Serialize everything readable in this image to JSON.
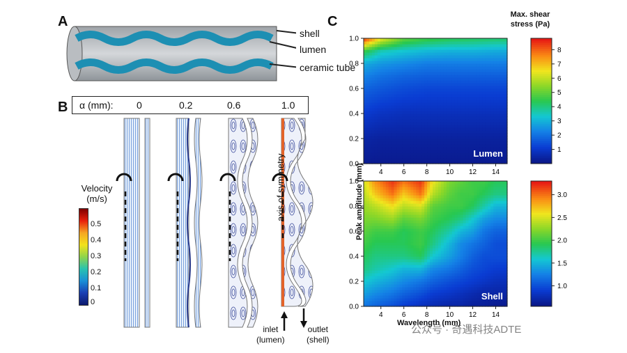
{
  "panels": {
    "a": "A",
    "b": "B",
    "c": "C"
  },
  "panel_a": {
    "labels": [
      "shell",
      "lumen",
      "ceramic tube"
    ]
  },
  "panel_b": {
    "alpha_header": "α (mm):",
    "alpha_values": [
      "0",
      "0.2",
      "0.6",
      "1.0"
    ],
    "velocity_title_line1": "Velocity",
    "velocity_title_line2": "(m/s)",
    "velocity_ticks": [
      "0.5",
      "0.4",
      "0.3",
      "0.2",
      "0.1",
      "0"
    ],
    "axis_of_symmetry": "axis of symmetry",
    "inlet_line1": "inlet",
    "inlet_line2": "(lumen)",
    "outlet_line1": "outlet",
    "outlet_line2": "(shell)"
  },
  "chart_data": [
    {
      "type": "heatmap",
      "title": "Lumen",
      "xlabel": "Wavelength (mm)",
      "ylabel": "Peak amplitude (mm)",
      "xlim": [
        2.5,
        15
      ],
      "ylim": [
        0,
        1
      ],
      "x_ticks": [
        "4",
        "6",
        "8",
        "10",
        "12",
        "14"
      ],
      "y_ticks": [
        "0.0",
        "0.2",
        "0.4",
        "0.6",
        "0.8",
        "1.0"
      ],
      "colorbar_title_line1": "Max. shear",
      "colorbar_title_line2": "stress (Pa)",
      "colorbar_ticks": [
        "8",
        "7",
        "6",
        "5",
        "4",
        "3",
        "2",
        "1"
      ],
      "colorbar_range": [
        0,
        8.8
      ],
      "x": [
        2.5,
        4,
        6,
        8,
        10,
        12,
        14,
        15
      ],
      "y": [
        0,
        0.2,
        0.4,
        0.6,
        0.7,
        0.8,
        0.9,
        1.0
      ],
      "z": [
        [
          0.2,
          0.2,
          0.2,
          0.2,
          0.2,
          0.2,
          0.2,
          0.2
        ],
        [
          0.5,
          0.4,
          0.4,
          0.4,
          0.4,
          0.4,
          0.4,
          0.4
        ],
        [
          1.1,
          0.9,
          0.8,
          0.8,
          0.8,
          0.8,
          0.8,
          0.8
        ],
        [
          1.8,
          1.6,
          1.4,
          1.3,
          1.3,
          1.3,
          1.3,
          1.3
        ],
        [
          2.3,
          2.0,
          1.8,
          1.7,
          1.7,
          1.7,
          1.7,
          1.7
        ],
        [
          2.9,
          2.6,
          2.4,
          2.2,
          2.2,
          2.2,
          2.2,
          2.2
        ],
        [
          4.6,
          3.6,
          3.3,
          3.1,
          3.0,
          3.0,
          2.9,
          2.9
        ],
        [
          8.6,
          6.5,
          5.0,
          4.6,
          4.4,
          4.3,
          4.2,
          4.2
        ]
      ]
    },
    {
      "type": "heatmap",
      "title": "Shell",
      "xlabel": "Wavelength (mm)",
      "ylabel": "Peak amplitude (mm)",
      "xlim": [
        2.5,
        15
      ],
      "ylim": [
        0,
        1
      ],
      "x_ticks": [
        "4",
        "6",
        "8",
        "10",
        "12",
        "14"
      ],
      "y_ticks": [
        "0.0",
        "0.2",
        "0.4",
        "0.6",
        "0.8",
        "1.0"
      ],
      "colorbar_ticks": [
        "3.0",
        "2.5",
        "2.0",
        "1.5",
        "1.0"
      ],
      "colorbar_range": [
        0.55,
        3.3
      ],
      "x": [
        2.5,
        3.5,
        5,
        6,
        7.5,
        8.5,
        10,
        11,
        12,
        13,
        14,
        15
      ],
      "y": [
        0,
        0.1,
        0.2,
        0.3,
        0.4,
        0.5,
        0.6,
        0.7,
        0.8,
        0.9,
        1.0
      ],
      "z": [
        [
          1.2,
          1.1,
          1.0,
          0.9,
          0.8,
          0.75,
          0.7,
          0.7,
          0.65,
          0.65,
          0.6,
          0.6
        ],
        [
          1.4,
          1.3,
          1.2,
          1.1,
          1.0,
          0.9,
          0.85,
          0.8,
          0.75,
          0.7,
          0.7,
          0.7
        ],
        [
          1.6,
          1.5,
          1.4,
          1.3,
          1.2,
          1.1,
          1.0,
          0.95,
          0.9,
          0.85,
          0.8,
          0.8
        ],
        [
          1.8,
          1.7,
          1.6,
          1.5,
          1.5,
          1.3,
          1.2,
          1.1,
          1.0,
          0.95,
          0.9,
          0.9
        ],
        [
          1.9,
          1.8,
          1.8,
          1.8,
          1.9,
          1.6,
          1.4,
          1.25,
          1.1,
          1.0,
          1.0,
          1.0
        ],
        [
          2.0,
          1.9,
          1.9,
          1.9,
          2.0,
          1.8,
          1.5,
          1.3,
          1.2,
          1.1,
          1.0,
          1.0
        ],
        [
          2.1,
          2.0,
          2.0,
          1.9,
          2.0,
          1.9,
          1.7,
          1.5,
          1.4,
          1.2,
          1.1,
          1.1
        ],
        [
          2.2,
          2.2,
          2.3,
          2.1,
          2.2,
          2.0,
          1.9,
          1.8,
          1.6,
          1.4,
          1.3,
          1.3
        ],
        [
          2.3,
          2.4,
          2.6,
          2.4,
          2.5,
          2.1,
          2.0,
          2.0,
          1.9,
          1.7,
          1.5,
          1.5
        ],
        [
          2.4,
          2.7,
          3.0,
          2.7,
          3.0,
          2.4,
          2.1,
          2.0,
          2.0,
          1.9,
          1.8,
          1.8
        ],
        [
          2.5,
          2.9,
          3.2,
          3.0,
          3.2,
          2.6,
          2.2,
          2.1,
          2.0,
          2.0,
          1.9,
          1.9
        ]
      ]
    }
  ],
  "watermark": "公众号 · 奇遇科技ADTE"
}
